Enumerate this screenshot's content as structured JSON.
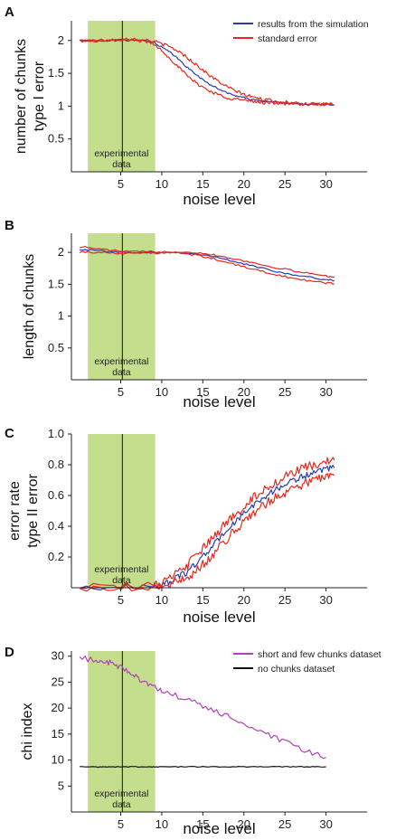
{
  "figure_colors": {
    "shade": "#c5de8e",
    "axis": "#222222",
    "blue": "#2b3bb0",
    "red": "#e8281c",
    "purple": "#b040b8",
    "black": "#111111"
  },
  "chart_data": [
    {
      "panel": "A",
      "type": "line",
      "xlabel": "noise level",
      "ylabel": [
        "number of chunks",
        "type I error"
      ],
      "xlim": [
        -1,
        35
      ],
      "ylim": [
        0.0,
        2.3
      ],
      "xticks": [
        5,
        10,
        15,
        20,
        25,
        30
      ],
      "yticks": [
        0.5,
        1,
        1.5,
        2
      ],
      "ytick_labels": [
        "0.5",
        "1",
        "1.5",
        "2"
      ],
      "shaded_region": {
        "x": [
          1,
          9.2
        ],
        "label": [
          "experimental",
          "data"
        ]
      },
      "vline": 5.2,
      "legend": {
        "position": "top-right",
        "entries": [
          "results from the simulation",
          "standard error"
        ]
      },
      "x": [
        0,
        2,
        4,
        6,
        8,
        9,
        10,
        11,
        12,
        13,
        14,
        15,
        16,
        17,
        18,
        19,
        20,
        21,
        22,
        23,
        24,
        25,
        26,
        27,
        28,
        29,
        30,
        31
      ],
      "series": [
        {
          "name": "results from the simulation",
          "color": "blue",
          "values": [
            2.0,
            2.0,
            2.0,
            2.02,
            2.0,
            1.97,
            1.9,
            1.82,
            1.72,
            1.6,
            1.5,
            1.4,
            1.32,
            1.26,
            1.2,
            1.16,
            1.13,
            1.1,
            1.08,
            1.07,
            1.06,
            1.05,
            1.04,
            1.04,
            1.03,
            1.03,
            1.03,
            1.02
          ],
          "noise": 0.012
        },
        {
          "name": "standard error",
          "color": "red",
          "values": [
            2.0,
            2.0,
            2.01,
            2.03,
            2.01,
            1.99,
            1.95,
            1.9,
            1.84,
            1.75,
            1.65,
            1.55,
            1.45,
            1.37,
            1.29,
            1.23,
            1.18,
            1.14,
            1.11,
            1.09,
            1.07,
            1.06,
            1.05,
            1.04,
            1.04,
            1.03,
            1.03,
            1.02
          ],
          "noise": 0.025
        },
        {
          "color": "red",
          "values": [
            2.0,
            1.99,
            1.99,
            2.01,
            1.99,
            1.95,
            1.85,
            1.73,
            1.6,
            1.47,
            1.37,
            1.29,
            1.22,
            1.17,
            1.13,
            1.11,
            1.09,
            1.07,
            1.06,
            1.05,
            1.05,
            1.04,
            1.04,
            1.03,
            1.03,
            1.03,
            1.02,
            1.02
          ],
          "noise": 0.025
        }
      ]
    },
    {
      "panel": "B",
      "type": "line",
      "xlabel": "noise level",
      "ylabel": [
        "length of chunks"
      ],
      "xlim": [
        -1,
        35
      ],
      "ylim": [
        0.0,
        2.3
      ],
      "xticks": [
        5,
        10,
        15,
        20,
        25,
        30
      ],
      "yticks": [
        0.5,
        1,
        1.5,
        2
      ],
      "ytick_labels": [
        "0.5",
        "1",
        "1.5",
        "2"
      ],
      "shaded_region": {
        "x": [
          1,
          9.2
        ],
        "label": [
          "experimental",
          "data"
        ]
      },
      "vline": 5.2,
      "x": [
        0,
        2,
        4,
        6,
        8,
        10,
        12,
        14,
        16,
        18,
        20,
        22,
        24,
        26,
        28,
        30,
        31
      ],
      "series": [
        {
          "color": "blue",
          "values": [
            2.05,
            2.03,
            2.01,
            2.0,
            2.0,
            2.0,
            2.0,
            1.98,
            1.94,
            1.88,
            1.82,
            1.76,
            1.7,
            1.65,
            1.61,
            1.57,
            1.56
          ],
          "noise": 0.012
        },
        {
          "color": "red",
          "values": [
            2.09,
            2.06,
            2.03,
            2.01,
            2.01,
            2.01,
            2.01,
            2.0,
            1.97,
            1.92,
            1.87,
            1.81,
            1.76,
            1.71,
            1.67,
            1.63,
            1.62
          ],
          "noise": 0.015
        },
        {
          "color": "red",
          "values": [
            2.01,
            2.0,
            1.99,
            1.99,
            1.99,
            1.99,
            1.99,
            1.96,
            1.91,
            1.84,
            1.77,
            1.71,
            1.65,
            1.59,
            1.55,
            1.52,
            1.51
          ],
          "noise": 0.015
        }
      ]
    },
    {
      "panel": "C",
      "type": "line",
      "xlabel": "noise level",
      "ylabel": [
        "error rate",
        "type II error"
      ],
      "xlim": [
        -1,
        35
      ],
      "ylim": [
        0.0,
        1.0
      ],
      "xticks": [
        5,
        10,
        15,
        20,
        25,
        30
      ],
      "yticks": [
        0.2,
        0.4,
        0.6,
        0.8,
        1.0
      ],
      "ytick_labels": [
        "0.2",
        "0.4",
        "0.6",
        "0.8",
        "1.0"
      ],
      "shaded_region": {
        "x": [
          1,
          9.2
        ],
        "label": [
          "experimental",
          "data"
        ]
      },
      "vline": 5.2,
      "x": [
        0,
        5,
        9,
        10,
        11,
        12,
        13,
        14,
        15,
        16,
        17,
        18,
        19,
        20,
        21,
        22,
        23,
        24,
        25,
        26,
        27,
        28,
        29,
        30,
        31
      ],
      "series": [
        {
          "color": "blue",
          "values": [
            0.0,
            0.005,
            0.01,
            0.02,
            0.04,
            0.07,
            0.1,
            0.15,
            0.2,
            0.26,
            0.32,
            0.38,
            0.43,
            0.48,
            0.53,
            0.57,
            0.61,
            0.64,
            0.67,
            0.7,
            0.72,
            0.74,
            0.75,
            0.77,
            0.78
          ],
          "noise": 0.02
        },
        {
          "color": "red",
          "values": [
            0.0,
            0.01,
            0.015,
            0.03,
            0.06,
            0.1,
            0.14,
            0.2,
            0.25,
            0.31,
            0.37,
            0.43,
            0.48,
            0.53,
            0.58,
            0.62,
            0.66,
            0.69,
            0.72,
            0.75,
            0.77,
            0.79,
            0.8,
            0.82,
            0.83
          ],
          "noise": 0.03
        },
        {
          "color": "red",
          "values": [
            0.0,
            0.0,
            0.005,
            0.01,
            0.02,
            0.04,
            0.07,
            0.1,
            0.15,
            0.2,
            0.26,
            0.32,
            0.38,
            0.43,
            0.48,
            0.52,
            0.56,
            0.59,
            0.62,
            0.65,
            0.67,
            0.69,
            0.71,
            0.72,
            0.73
          ],
          "noise": 0.03
        }
      ]
    },
    {
      "panel": "D",
      "type": "line",
      "xlabel": "noise level",
      "ylabel": [
        "chi index"
      ],
      "xlim": [
        -1,
        35
      ],
      "ylim": [
        0,
        31
      ],
      "xticks": [
        5,
        10,
        15,
        20,
        25,
        30
      ],
      "yticks": [
        5,
        10,
        15,
        20,
        25,
        30
      ],
      "ytick_labels": [
        "5",
        "10",
        "15",
        "20",
        "25",
        "30"
      ],
      "shaded_region": {
        "x": [
          1,
          9.2
        ],
        "label": [
          "experimental",
          "data"
        ]
      },
      "vline": 5.2,
      "legend": {
        "position": "top-right",
        "entries": [
          "short and few chunks dataset",
          "no chunks dataset"
        ]
      },
      "x": [
        0,
        2,
        3,
        4,
        5,
        6,
        7,
        8,
        9,
        10,
        12,
        14,
        16,
        18,
        20,
        22,
        24,
        26,
        28,
        30
      ],
      "series": [
        {
          "name": "short and few chunks dataset",
          "color": "purple",
          "values": [
            29.5,
            29.3,
            29.0,
            28.5,
            27.8,
            27.0,
            26.0,
            25.0,
            24.0,
            23.2,
            22.2,
            21.0,
            19.8,
            18.4,
            17.0,
            15.5,
            14.0,
            12.7,
            11.5,
            10.5
          ],
          "noise": 0.6
        },
        {
          "name": "no chunks dataset",
          "color": "black",
          "values": [
            8.7,
            8.7,
            8.7,
            8.7,
            8.7,
            8.7,
            8.7,
            8.7,
            8.7,
            8.7,
            8.7,
            8.7,
            8.7,
            8.7,
            8.7,
            8.7,
            8.7,
            8.7,
            8.7,
            8.7
          ],
          "noise": 0.08
        }
      ]
    }
  ]
}
